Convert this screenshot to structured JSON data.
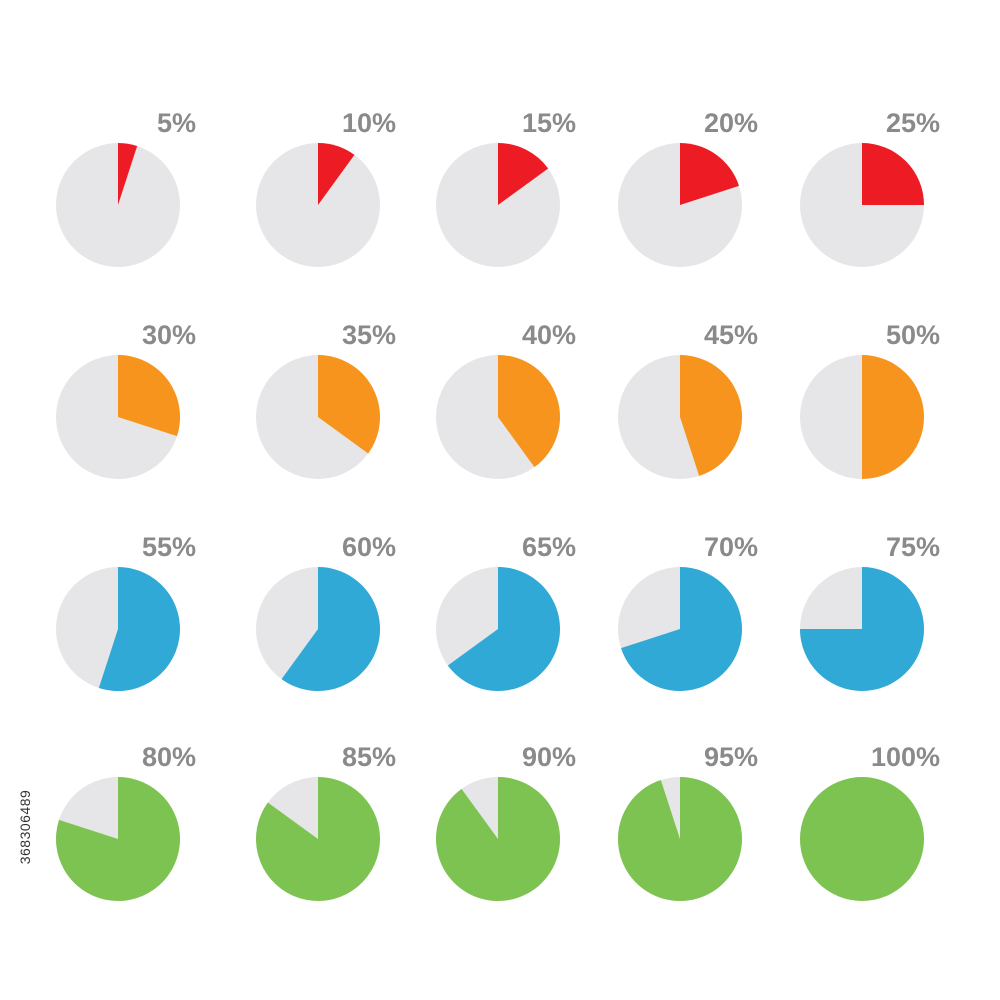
{
  "chart_data": {
    "type": "pie",
    "title": "",
    "track_color": "#e6e6e8",
    "label_color": "#8a8a8c",
    "rows": [
      {
        "color": "#ed1c24",
        "values": [
          5,
          10,
          15,
          20,
          25
        ],
        "labels": [
          "5%",
          "10%",
          "15%",
          "20%",
          "25%"
        ]
      },
      {
        "color": "#f7941d",
        "values": [
          30,
          35,
          40,
          45,
          50
        ],
        "labels": [
          "30%",
          "35%",
          "40%",
          "45%",
          "50%"
        ]
      },
      {
        "color": "#30a9d6",
        "values": [
          55,
          60,
          65,
          70,
          75
        ],
        "labels": [
          "55%",
          "60%",
          "65%",
          "70%",
          "75%"
        ]
      },
      {
        "color": "#7dc352",
        "values": [
          80,
          85,
          90,
          95,
          100
        ],
        "labels": [
          "80%",
          "85%",
          "90%",
          "95%",
          "100%"
        ]
      }
    ]
  },
  "stock_id": "368306489"
}
